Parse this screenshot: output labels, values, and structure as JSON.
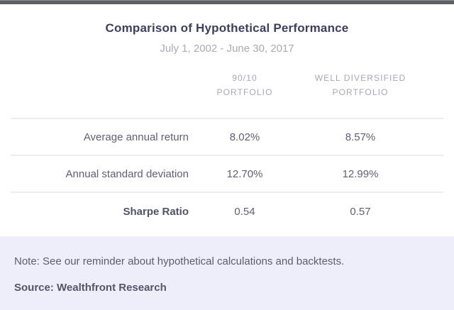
{
  "header": {
    "title": "Comparison of Hypothetical Performance",
    "subtitle": "July 1, 2002 - June 30, 2017"
  },
  "table": {
    "column_headers": [
      {
        "line1": "90/10",
        "line2": "PORTFOLIO"
      },
      {
        "line1": "WELL DIVERSIFIED",
        "line2": "PORTFOLIO"
      }
    ],
    "rows": [
      {
        "label": "Average annual return",
        "value1": "8.02%",
        "value2": "8.57%"
      },
      {
        "label": "Annual standard deviation",
        "value1": "12.70%",
        "value2": "12.99%"
      },
      {
        "label": "Sharpe Ratio",
        "value1": "0.54",
        "value2": "0.57"
      }
    ]
  },
  "footer": {
    "note": "Note: See our reminder about hypothetical calculations and backtests.",
    "source": "Source: Wealthfront Research"
  },
  "colors": {
    "title_text": "#3e3e5e",
    "muted_text": "#a7a7b7",
    "body_text": "#5f5f73",
    "divider": "#ebecf2",
    "footer_background": "#edeef9",
    "top_bar": "#5d6164"
  },
  "chart_data": {
    "type": "table",
    "title": "Comparison of Hypothetical Performance",
    "subtitle": "July 1, 2002 - June 30, 2017",
    "columns": [
      "",
      "90/10 Portfolio",
      "Well Diversified Portfolio"
    ],
    "rows": [
      [
        "Average annual return",
        "8.02%",
        "8.57%"
      ],
      [
        "Annual standard deviation",
        "12.70%",
        "12.99%"
      ],
      [
        "Sharpe Ratio",
        "0.54",
        "0.57"
      ]
    ],
    "source": "Wealthfront Research"
  }
}
